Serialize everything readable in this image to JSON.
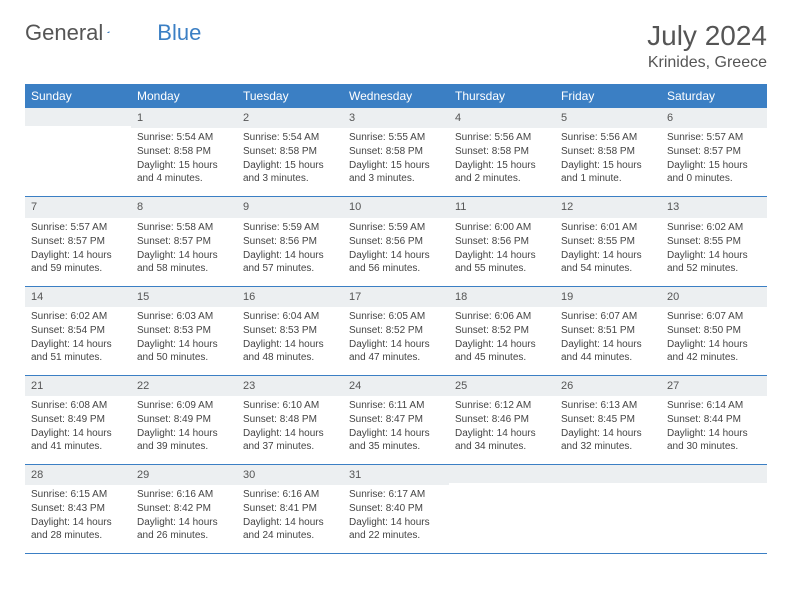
{
  "brand": {
    "g": "General",
    "b": "Blue"
  },
  "title": "July 2024",
  "location": "Krinides, Greece",
  "headers": [
    "Sunday",
    "Monday",
    "Tuesday",
    "Wednesday",
    "Thursday",
    "Friday",
    "Saturday"
  ],
  "colors": {
    "header_bg": "#3b7fc4",
    "header_fg": "#ffffff",
    "daynum_bg": "#eceff1",
    "row_divider": "#3b7fc4",
    "text": "#444444",
    "title_color": "#555555"
  },
  "weeks": [
    [
      {
        "n": "",
        "sr": "",
        "ss": "",
        "dl": ""
      },
      {
        "n": "1",
        "sr": "5:54 AM",
        "ss": "8:58 PM",
        "dl": "15 hours and 4 minutes."
      },
      {
        "n": "2",
        "sr": "5:54 AM",
        "ss": "8:58 PM",
        "dl": "15 hours and 3 minutes."
      },
      {
        "n": "3",
        "sr": "5:55 AM",
        "ss": "8:58 PM",
        "dl": "15 hours and 3 minutes."
      },
      {
        "n": "4",
        "sr": "5:56 AM",
        "ss": "8:58 PM",
        "dl": "15 hours and 2 minutes."
      },
      {
        "n": "5",
        "sr": "5:56 AM",
        "ss": "8:58 PM",
        "dl": "15 hours and 1 minute."
      },
      {
        "n": "6",
        "sr": "5:57 AM",
        "ss": "8:57 PM",
        "dl": "15 hours and 0 minutes."
      }
    ],
    [
      {
        "n": "7",
        "sr": "5:57 AM",
        "ss": "8:57 PM",
        "dl": "14 hours and 59 minutes."
      },
      {
        "n": "8",
        "sr": "5:58 AM",
        "ss": "8:57 PM",
        "dl": "14 hours and 58 minutes."
      },
      {
        "n": "9",
        "sr": "5:59 AM",
        "ss": "8:56 PM",
        "dl": "14 hours and 57 minutes."
      },
      {
        "n": "10",
        "sr": "5:59 AM",
        "ss": "8:56 PM",
        "dl": "14 hours and 56 minutes."
      },
      {
        "n": "11",
        "sr": "6:00 AM",
        "ss": "8:56 PM",
        "dl": "14 hours and 55 minutes."
      },
      {
        "n": "12",
        "sr": "6:01 AM",
        "ss": "8:55 PM",
        "dl": "14 hours and 54 minutes."
      },
      {
        "n": "13",
        "sr": "6:02 AM",
        "ss": "8:55 PM",
        "dl": "14 hours and 52 minutes."
      }
    ],
    [
      {
        "n": "14",
        "sr": "6:02 AM",
        "ss": "8:54 PM",
        "dl": "14 hours and 51 minutes."
      },
      {
        "n": "15",
        "sr": "6:03 AM",
        "ss": "8:53 PM",
        "dl": "14 hours and 50 minutes."
      },
      {
        "n": "16",
        "sr": "6:04 AM",
        "ss": "8:53 PM",
        "dl": "14 hours and 48 minutes."
      },
      {
        "n": "17",
        "sr": "6:05 AM",
        "ss": "8:52 PM",
        "dl": "14 hours and 47 minutes."
      },
      {
        "n": "18",
        "sr": "6:06 AM",
        "ss": "8:52 PM",
        "dl": "14 hours and 45 minutes."
      },
      {
        "n": "19",
        "sr": "6:07 AM",
        "ss": "8:51 PM",
        "dl": "14 hours and 44 minutes."
      },
      {
        "n": "20",
        "sr": "6:07 AM",
        "ss": "8:50 PM",
        "dl": "14 hours and 42 minutes."
      }
    ],
    [
      {
        "n": "21",
        "sr": "6:08 AM",
        "ss": "8:49 PM",
        "dl": "14 hours and 41 minutes."
      },
      {
        "n": "22",
        "sr": "6:09 AM",
        "ss": "8:49 PM",
        "dl": "14 hours and 39 minutes."
      },
      {
        "n": "23",
        "sr": "6:10 AM",
        "ss": "8:48 PM",
        "dl": "14 hours and 37 minutes."
      },
      {
        "n": "24",
        "sr": "6:11 AM",
        "ss": "8:47 PM",
        "dl": "14 hours and 35 minutes."
      },
      {
        "n": "25",
        "sr": "6:12 AM",
        "ss": "8:46 PM",
        "dl": "14 hours and 34 minutes."
      },
      {
        "n": "26",
        "sr": "6:13 AM",
        "ss": "8:45 PM",
        "dl": "14 hours and 32 minutes."
      },
      {
        "n": "27",
        "sr": "6:14 AM",
        "ss": "8:44 PM",
        "dl": "14 hours and 30 minutes."
      }
    ],
    [
      {
        "n": "28",
        "sr": "6:15 AM",
        "ss": "8:43 PM",
        "dl": "14 hours and 28 minutes."
      },
      {
        "n": "29",
        "sr": "6:16 AM",
        "ss": "8:42 PM",
        "dl": "14 hours and 26 minutes."
      },
      {
        "n": "30",
        "sr": "6:16 AM",
        "ss": "8:41 PM",
        "dl": "14 hours and 24 minutes."
      },
      {
        "n": "31",
        "sr": "6:17 AM",
        "ss": "8:40 PM",
        "dl": "14 hours and 22 minutes."
      },
      {
        "n": "",
        "sr": "",
        "ss": "",
        "dl": ""
      },
      {
        "n": "",
        "sr": "",
        "ss": "",
        "dl": ""
      },
      {
        "n": "",
        "sr": "",
        "ss": "",
        "dl": ""
      }
    ]
  ],
  "labels": {
    "sunrise": "Sunrise: ",
    "sunset": "Sunset: ",
    "daylight": "Daylight: "
  }
}
